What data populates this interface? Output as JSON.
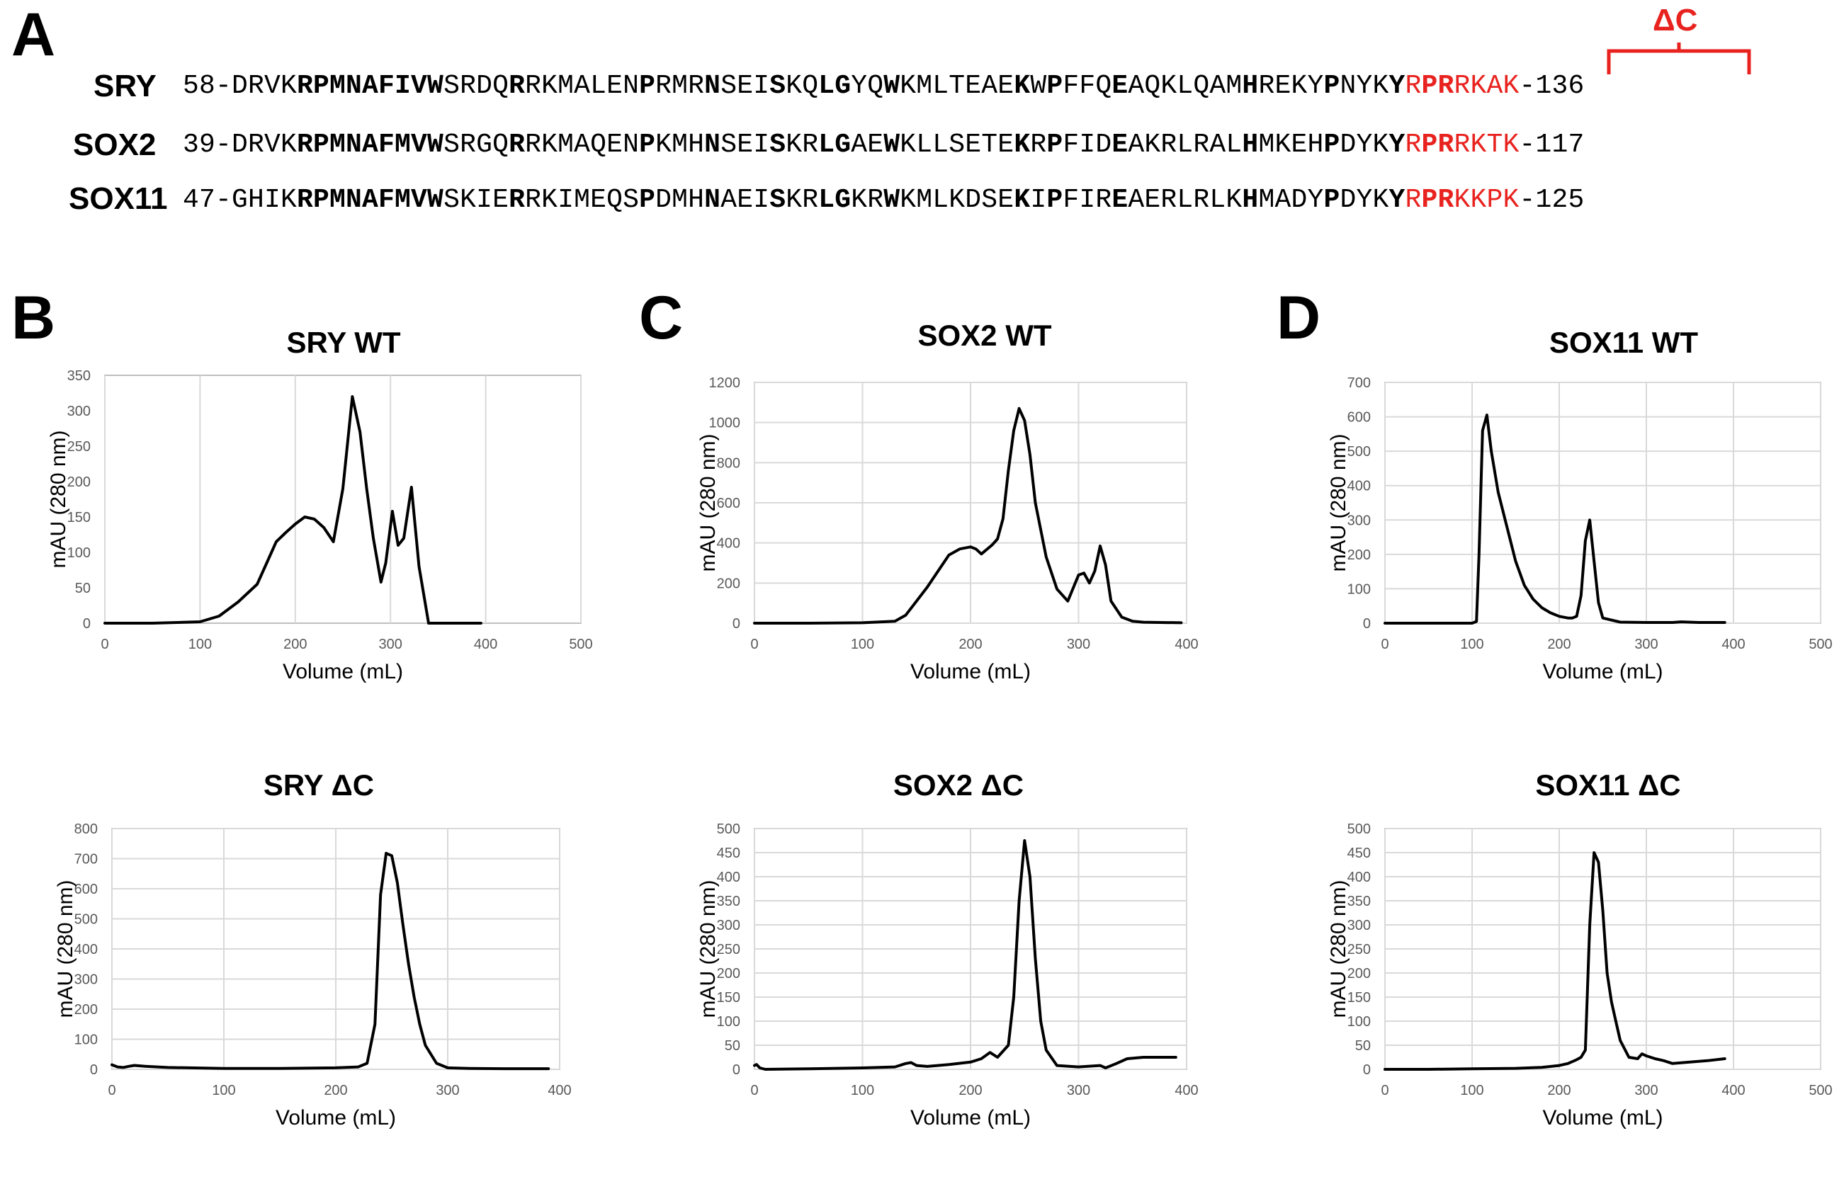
{
  "panels": {
    "A": "A",
    "B": "B",
    "C": "C",
    "D": "D"
  },
  "sequence_alignment": {
    "deletion_label": "ΔC",
    "rows": [
      {
        "name": "SRY",
        "start": "58-",
        "end": "-136",
        "segments": [
          {
            "t": "DRVK"
          },
          {
            "t": "RPMNAFIVW",
            "b": true
          },
          {
            "t": "SRDQ"
          },
          {
            "t": "R",
            "b": true
          },
          {
            "t": "RKMALEN"
          },
          {
            "t": "P",
            "b": true
          },
          {
            "t": "RMR"
          },
          {
            "t": "N",
            "b": true
          },
          {
            "t": "SEI"
          },
          {
            "t": "S",
            "b": true
          },
          {
            "t": "KQ"
          },
          {
            "t": "LG",
            "b": true
          },
          {
            "t": "YQ"
          },
          {
            "t": "W",
            "b": true
          },
          {
            "t": "KMLTEAE"
          },
          {
            "t": "K",
            "b": true
          },
          {
            "t": "W"
          },
          {
            "t": "P",
            "b": true
          },
          {
            "t": "FFQ"
          },
          {
            "t": "E",
            "b": true
          },
          {
            "t": "AQKLQAM"
          },
          {
            "t": "H",
            "b": true
          },
          {
            "t": "REKY"
          },
          {
            "t": "P",
            "b": true
          },
          {
            "t": "NYK"
          },
          {
            "t": "Y",
            "b": true
          },
          {
            "t": "R",
            "r": true
          },
          {
            "t": "PR",
            "b": true,
            "r": true
          },
          {
            "t": "RKAK",
            "r": true
          }
        ]
      },
      {
        "name": "SOX2",
        "start": "39-",
        "end": "-117",
        "segments": [
          {
            "t": "DRVK"
          },
          {
            "t": "RPMNAFMVW",
            "b": true
          },
          {
            "t": "SRGQ"
          },
          {
            "t": "R",
            "b": true
          },
          {
            "t": "RKMAQEN"
          },
          {
            "t": "P",
            "b": true
          },
          {
            "t": "KMH"
          },
          {
            "t": "N",
            "b": true
          },
          {
            "t": "SEI"
          },
          {
            "t": "S",
            "b": true
          },
          {
            "t": "KR"
          },
          {
            "t": "LG",
            "b": true
          },
          {
            "t": "AE"
          },
          {
            "t": "W",
            "b": true
          },
          {
            "t": "KLLSETE"
          },
          {
            "t": "K",
            "b": true
          },
          {
            "t": "R"
          },
          {
            "t": "P",
            "b": true
          },
          {
            "t": "FID"
          },
          {
            "t": "E",
            "b": true
          },
          {
            "t": "AKRLRAL"
          },
          {
            "t": "H",
            "b": true
          },
          {
            "t": "MKEH"
          },
          {
            "t": "P",
            "b": true
          },
          {
            "t": "DYK"
          },
          {
            "t": "Y",
            "b": true
          },
          {
            "t": "R",
            "r": true
          },
          {
            "t": "PR",
            "b": true,
            "r": true
          },
          {
            "t": "RKTK",
            "r": true
          }
        ]
      },
      {
        "name": "SOX11",
        "start": "47-",
        "end": "-125",
        "segments": [
          {
            "t": "GHIK"
          },
          {
            "t": "RPMNAFMVW",
            "b": true
          },
          {
            "t": "SKIE"
          },
          {
            "t": "R",
            "b": true
          },
          {
            "t": "RKIMEQS"
          },
          {
            "t": "P",
            "b": true
          },
          {
            "t": "DMH"
          },
          {
            "t": "N",
            "b": true
          },
          {
            "t": "AEI"
          },
          {
            "t": "S",
            "b": true
          },
          {
            "t": "KR"
          },
          {
            "t": "LG",
            "b": true
          },
          {
            "t": "KR"
          },
          {
            "t": "W",
            "b": true
          },
          {
            "t": "KMLKDSE"
          },
          {
            "t": "K",
            "b": true
          },
          {
            "t": "I"
          },
          {
            "t": "P",
            "b": true
          },
          {
            "t": "FIR"
          },
          {
            "t": "E",
            "b": true
          },
          {
            "t": "AERLRLK"
          },
          {
            "t": "H",
            "b": true
          },
          {
            "t": "MADY"
          },
          {
            "t": "P",
            "b": true
          },
          {
            "t": "DYK"
          },
          {
            "t": "Y",
            "b": true
          },
          {
            "t": "R",
            "r": true
          },
          {
            "t": "PR",
            "b": true,
            "r": true
          },
          {
            "t": "KKPK",
            "r": true
          }
        ]
      }
    ]
  },
  "colors": {
    "highlight": "#e8231f",
    "grid": "#d9d9d9",
    "axis": "#bfbfbf",
    "trace": "#000000",
    "tick_text": "#595959"
  },
  "chart_data": [
    {
      "id": "sry-wt",
      "type": "line",
      "title": "SRY WT",
      "xlabel": "Volume (mL)",
      "ylabel": "mAU (280 nm)",
      "xlim": [
        0,
        500
      ],
      "xticks": [
        0,
        100,
        200,
        300,
        400,
        500
      ],
      "ylim": [
        0,
        350
      ],
      "yticks": [
        0,
        50,
        100,
        150,
        200,
        250,
        300,
        350
      ],
      "grid": "vertical",
      "x": [
        0,
        50,
        100,
        120,
        140,
        160,
        170,
        180,
        190,
        200,
        210,
        220,
        230,
        240,
        250,
        260,
        268,
        275,
        282,
        290,
        295,
        302,
        308,
        314,
        322,
        330,
        340,
        360,
        395
      ],
      "y": [
        0,
        0,
        2,
        10,
        30,
        55,
        85,
        115,
        128,
        140,
        150,
        147,
        135,
        115,
        190,
        320,
        270,
        190,
        120,
        58,
        85,
        158,
        110,
        120,
        192,
        80,
        0,
        0,
        0
      ]
    },
    {
      "id": "sry-dc",
      "type": "line",
      "title": "SRY ΔC",
      "xlabel": "Volume (mL)",
      "ylabel": "mAU (280 nm)",
      "xlim": [
        0,
        400
      ],
      "xticks": [
        0,
        100,
        200,
        300,
        400
      ],
      "ylim": [
        0,
        800
      ],
      "yticks": [
        0,
        100,
        200,
        300,
        400,
        500,
        600,
        700,
        800
      ],
      "grid": "both",
      "x": [
        0,
        5,
        10,
        15,
        20,
        30,
        50,
        100,
        150,
        200,
        220,
        228,
        235,
        240,
        245,
        250,
        255,
        260,
        265,
        270,
        275,
        280,
        290,
        300,
        320,
        350,
        390
      ],
      "y": [
        15,
        8,
        6,
        10,
        13,
        10,
        6,
        3,
        3,
        5,
        8,
        20,
        150,
        580,
        718,
        710,
        620,
        480,
        350,
        240,
        150,
        80,
        20,
        5,
        3,
        2,
        2
      ]
    },
    {
      "id": "sox2-wt",
      "type": "line",
      "title": "SOX2 WT",
      "xlabel": "Volume (mL)",
      "ylabel": "mAU (280 nm)",
      "xlim": [
        0,
        400
      ],
      "xticks": [
        0,
        100,
        200,
        300,
        400
      ],
      "ylim": [
        0,
        1200
      ],
      "yticks": [
        0,
        200,
        400,
        600,
        800,
        1000,
        1200
      ],
      "grid": "both",
      "x": [
        0,
        50,
        100,
        130,
        140,
        150,
        160,
        170,
        180,
        190,
        200,
        205,
        210,
        220,
        225,
        230,
        235,
        240,
        245,
        250,
        255,
        260,
        270,
        280,
        290,
        300,
        305,
        310,
        315,
        320,
        325,
        330,
        340,
        350,
        360,
        380,
        395
      ],
      "y": [
        0,
        0,
        2,
        10,
        40,
        110,
        180,
        260,
        340,
        370,
        380,
        370,
        345,
        390,
        420,
        520,
        760,
        960,
        1070,
        1010,
        840,
        600,
        330,
        170,
        110,
        240,
        250,
        200,
        260,
        385,
        290,
        110,
        30,
        10,
        5,
        3,
        2
      ]
    },
    {
      "id": "sox2-dc",
      "type": "line",
      "title": "SOX2 ΔC",
      "xlabel": "Volume (mL)",
      "ylabel": "mAU (280 nm)",
      "xlim": [
        0,
        400
      ],
      "xticks": [
        0,
        100,
        200,
        300,
        400
      ],
      "ylim": [
        0,
        500
      ],
      "yticks": [
        0,
        50,
        100,
        150,
        200,
        250,
        300,
        350,
        400,
        450,
        500
      ],
      "grid": "both",
      "x": [
        0,
        2,
        5,
        10,
        50,
        100,
        130,
        140,
        145,
        150,
        160,
        180,
        200,
        210,
        218,
        225,
        235,
        240,
        245,
        250,
        255,
        260,
        265,
        270,
        280,
        300,
        320,
        325,
        335,
        345,
        360,
        390
      ],
      "y": [
        8,
        10,
        3,
        0,
        1,
        3,
        5,
        12,
        14,
        8,
        6,
        10,
        15,
        22,
        35,
        25,
        50,
        150,
        350,
        475,
        400,
        230,
        100,
        40,
        8,
        5,
        8,
        3,
        12,
        22,
        25,
        25
      ]
    },
    {
      "id": "sox11-wt",
      "type": "line",
      "title": "SOX11 WT",
      "xlabel": "Volume (mL)",
      "ylabel": "mAU (280 nm)",
      "xlim": [
        0,
        500
      ],
      "xticks": [
        0,
        100,
        200,
        300,
        400,
        500
      ],
      "ylim": [
        0,
        700
      ],
      "yticks": [
        0,
        100,
        200,
        300,
        400,
        500,
        600,
        700
      ],
      "grid": "both",
      "x": [
        0,
        50,
        100,
        105,
        108,
        112,
        117,
        122,
        130,
        140,
        150,
        160,
        170,
        180,
        190,
        200,
        210,
        215,
        220,
        225,
        230,
        235,
        240,
        245,
        250,
        270,
        300,
        330,
        340,
        360,
        390
      ],
      "y": [
        0,
        0,
        0,
        5,
        200,
        560,
        605,
        500,
        380,
        280,
        180,
        110,
        70,
        45,
        30,
        20,
        15,
        15,
        20,
        80,
        240,
        300,
        180,
        60,
        15,
        3,
        2,
        2,
        4,
        2,
        2
      ]
    },
    {
      "id": "sox11-dc",
      "type": "line",
      "title": "SOX11 ΔC",
      "xlabel": "Volume (mL)",
      "ylabel": "mAU (280 nm)",
      "xlim": [
        0,
        500
      ],
      "xticks": [
        0,
        100,
        200,
        300,
        400,
        500
      ],
      "ylim": [
        0,
        500
      ],
      "yticks": [
        0,
        50,
        100,
        150,
        200,
        250,
        300,
        350,
        400,
        450,
        500
      ],
      "grid": "both",
      "x": [
        0,
        50,
        100,
        150,
        180,
        200,
        210,
        220,
        225,
        230,
        235,
        240,
        245,
        250,
        255,
        260,
        265,
        270,
        280,
        290,
        295,
        300,
        310,
        320,
        330,
        350,
        370,
        390
      ],
      "y": [
        0,
        0,
        1,
        2,
        4,
        8,
        12,
        20,
        25,
        40,
        300,
        450,
        430,
        330,
        200,
        140,
        100,
        60,
        25,
        22,
        32,
        28,
        22,
        18,
        12,
        15,
        18,
        22
      ]
    }
  ]
}
